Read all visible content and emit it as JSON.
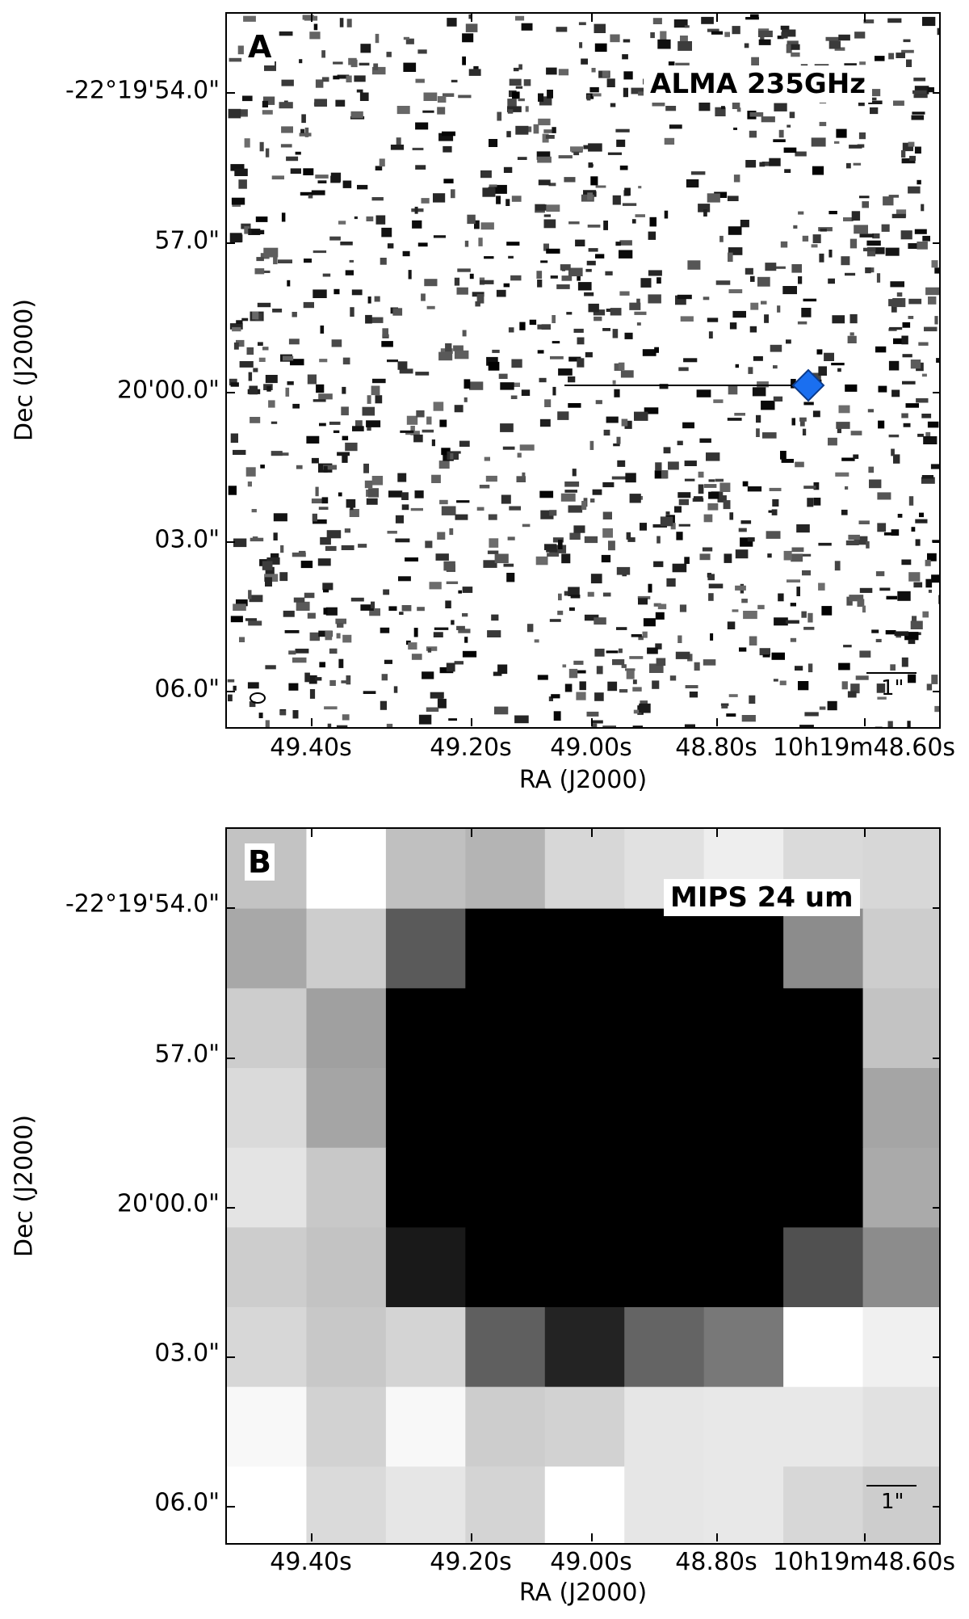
{
  "panels": [
    {
      "letter": "A",
      "band": "ALMA 235GHz",
      "y_ticks": [
        "-22°19'54.0\"",
        "57.0\"",
        "20'00.0\"",
        "03.0\"",
        "06.0\""
      ],
      "x_ticks": [
        "49.40s",
        "49.20s",
        "49.00s",
        "48.80s",
        "10h19m48.60s"
      ],
      "xlabel": "RA (J2000)",
      "ylabel": "Dec (J2000)",
      "scalebar": "1\"",
      "marker_color": "#1a6ff0"
    },
    {
      "letter": "B",
      "band": "MIPS 24 um",
      "y_ticks": [
        "-22°19'54.0\"",
        "57.0\"",
        "20'00.0\"",
        "03.0\"",
        "06.0\""
      ],
      "x_ticks": [
        "49.40s",
        "49.20s",
        "49.00s",
        "48.80s",
        "10h19m48.60s"
      ],
      "xlabel": "RA (J2000)",
      "ylabel": "Dec (J2000)",
      "scalebar": "1\"",
      "pixel_gray_levels": [
        [
          195,
          255,
          192,
          180,
          215,
          225,
          238,
          218,
          215
        ],
        [
          168,
          205,
          90,
          0,
          0,
          0,
          0,
          140,
          205
        ],
        [
          205,
          160,
          0,
          0,
          0,
          0,
          0,
          0,
          195
        ],
        [
          218,
          165,
          0,
          0,
          0,
          0,
          0,
          0,
          165
        ],
        [
          228,
          200,
          0,
          0,
          0,
          0,
          0,
          0,
          170
        ],
        [
          205,
          195,
          25,
          0,
          0,
          0,
          0,
          80,
          140
        ],
        [
          215,
          200,
          212,
          95,
          35,
          100,
          120,
          255,
          240
        ],
        [
          248,
          210,
          248,
          205,
          210,
          230,
          232,
          232,
          225
        ],
        [
          255,
          218,
          230,
          212,
          255,
          230,
          232,
          215,
          205
        ]
      ]
    }
  ]
}
